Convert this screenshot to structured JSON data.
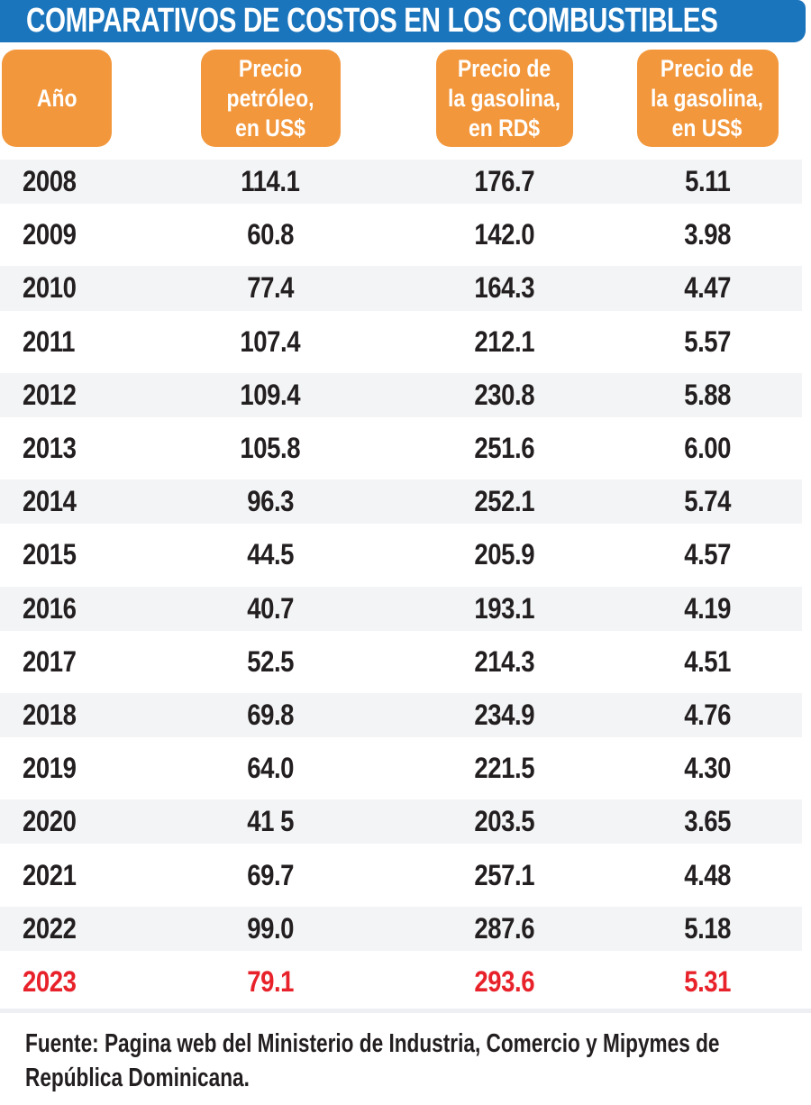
{
  "title": "COMPARATIVOS DE COSTOS EN LOS COMBUSTIBLES",
  "header_labels": [
    "Año",
    "Precio\npetróleo,\nen US$",
    "Precio de\nla gasolina,\nen RD$",
    "Precio de\nla gasolina,\nen US$"
  ],
  "source": "Fuente: Pagina web del Ministerio de Industria, Comercio y Mipymes de\nRepública Dominicana.",
  "colors": {
    "bar_blue": "#1b75bc",
    "box_orange": "#f2973c",
    "row_stripe": "#f3f4f6",
    "highlight_red": "#e8222a",
    "text_black": "#231f20"
  },
  "chart_data": {
    "type": "table",
    "title": "COMPARATIVOS DE COSTOS EN LOS COMBUSTIBLES",
    "columns": [
      "Año",
      "Precio petróleo, en US$",
      "Precio de la gasolina, en RD$",
      "Precio de la gasolina, en US$"
    ],
    "rows": [
      [
        "2008",
        "114.1",
        "176.7",
        "5.11"
      ],
      [
        "2009",
        "60.8",
        "142.0",
        "3.98"
      ],
      [
        "2010",
        "77.4",
        "164.3",
        "4.47"
      ],
      [
        "2011",
        "107.4",
        "212.1",
        "5.57"
      ],
      [
        "2012",
        "109.4",
        "230.8",
        "5.88"
      ],
      [
        "2013",
        "105.8",
        "251.6",
        "6.00"
      ],
      [
        "2014",
        "96.3",
        "252.1",
        "5.74"
      ],
      [
        "2015",
        "44.5",
        "205.9",
        "4.57"
      ],
      [
        "2016",
        "40.7",
        "193.1",
        "4.19"
      ],
      [
        "2017",
        "52.5",
        "214.3",
        "4.51"
      ],
      [
        "2018",
        "69.8",
        "234.9",
        "4.76"
      ],
      [
        "2019",
        "64.0",
        "221.5",
        "4.30"
      ],
      [
        "2020",
        "41 5",
        "203.5",
        "3.65"
      ],
      [
        "2021",
        "69.7",
        "257.1",
        "4.48"
      ],
      [
        "2022",
        "99.0",
        "287.6",
        "5.18"
      ],
      [
        "2023",
        "79.1",
        "293.6",
        "5.31"
      ]
    ],
    "highlight_row": "2023",
    "source": "Fuente: Pagina web del Ministerio de Industria, Comercio y Mipymes de República Dominicana."
  }
}
